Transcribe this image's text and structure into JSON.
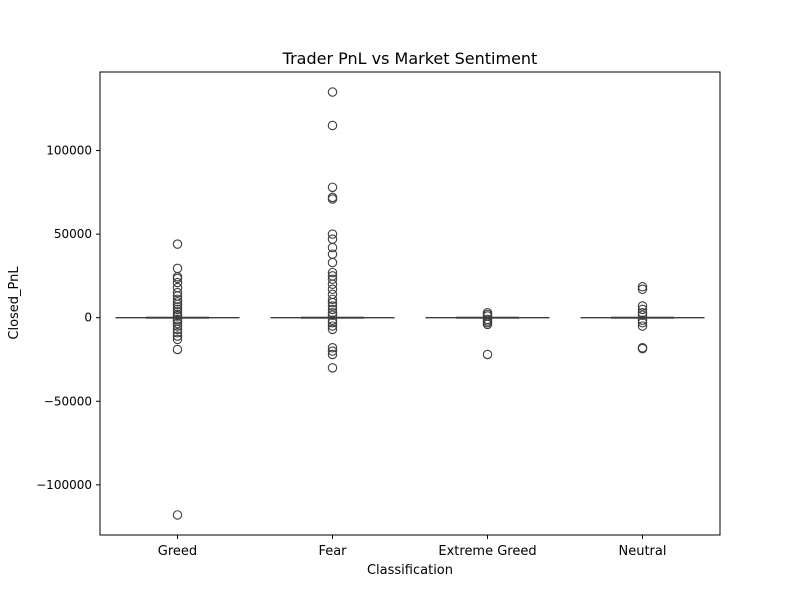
{
  "chart_data": {
    "type": "box",
    "title": "Trader PnL vs Market Sentiment",
    "xlabel": "Classification",
    "ylabel": "Closed_PnL",
    "categories": [
      "Greed",
      "Fear",
      "Extreme Greed",
      "Neutral"
    ],
    "ylim": [
      -130000,
      147000
    ],
    "yticks": [
      -100000,
      -50000,
      0,
      50000,
      100000
    ],
    "ytick_labels": [
      "−100000",
      "−50000",
      "0",
      "50000",
      "100000"
    ],
    "grid": false,
    "legend": "none",
    "boxes": [
      {
        "category": "Greed",
        "q1": 0,
        "median": 0,
        "q3": 0,
        "whisker_low": 0,
        "whisker_high": 0,
        "outliers": [
          -118000,
          -19000,
          -13000,
          -11000,
          -9000,
          -7000,
          -5000,
          -3500,
          -2000,
          -1000,
          1000,
          2000,
          3500,
          5000,
          6500,
          8000,
          9500,
          11000,
          13000,
          15000,
          18000,
          21000,
          23500,
          24500,
          29500,
          44000
        ]
      },
      {
        "category": "Fear",
        "q1": 0,
        "median": 0,
        "q3": 0,
        "whisker_low": 0,
        "whisker_high": 0,
        "outliers": [
          -30000,
          -22000,
          -20000,
          -18000,
          -7000,
          -5000,
          -3000,
          -1500,
          1500,
          3000,
          5000,
          7000,
          9000,
          11000,
          14000,
          17000,
          20000,
          23000,
          25000,
          27000,
          33000,
          38000,
          42000,
          47000,
          50000,
          71000,
          72000,
          78000,
          115000,
          135000
        ]
      },
      {
        "category": "Extreme Greed",
        "q1": 0,
        "median": 0,
        "q3": 0,
        "whisker_low": 0,
        "whisker_high": 0,
        "outliers": [
          -22000,
          -4000,
          -3000,
          -2000,
          -1000,
          1000,
          2000,
          3000
        ]
      },
      {
        "category": "Neutral",
        "q1": 0,
        "median": 0,
        "q3": 0,
        "whisker_low": 0,
        "whisker_high": 0,
        "outliers": [
          -18500,
          -18000,
          -5000,
          -3000,
          -1500,
          1500,
          3000,
          5000,
          7000,
          17000,
          18500
        ]
      }
    ],
    "colors": {
      "box_line": "#3d3d3d",
      "outlier_edge": "#3d3d3d",
      "axis": "#000000"
    }
  }
}
